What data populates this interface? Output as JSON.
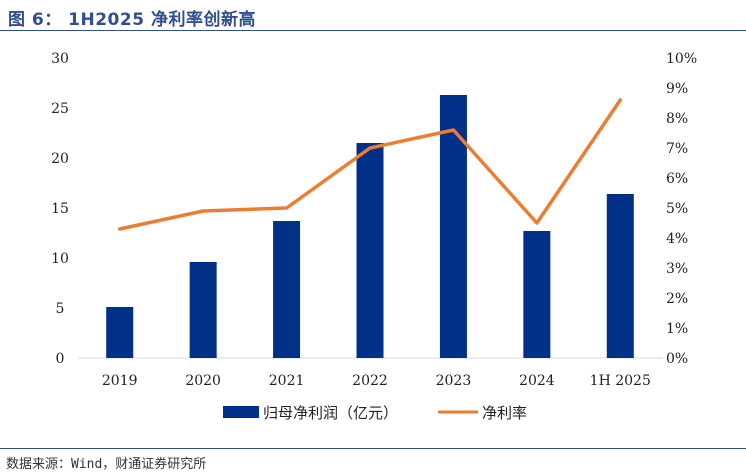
{
  "header": {
    "title": "图 6： 1H2025 净利率创新高"
  },
  "footer": {
    "source": "数据来源：Wind，财通证券研究所"
  },
  "colors": {
    "bar": "#003087",
    "line": "#ed7d31",
    "accent": "#2f4f8f"
  },
  "chart_data": {
    "type": "bar",
    "categories": [
      "2019",
      "2020",
      "2021",
      "2022",
      "2023",
      "2024",
      "1H2025"
    ],
    "category_labels": [
      "2019",
      "2020",
      "2021",
      "2022",
      "2023",
      "2024",
      "1H 2025"
    ],
    "series": [
      {
        "name": "归母净利润（亿元）",
        "type": "bar",
        "axis": "left",
        "values": [
          5.1,
          9.6,
          13.7,
          21.5,
          26.3,
          12.7,
          16.4
        ]
      },
      {
        "name": "净利率",
        "type": "line",
        "axis": "right",
        "values": [
          4.3,
          4.9,
          5.0,
          7.0,
          7.6,
          4.5,
          8.6
        ]
      }
    ],
    "y_left": {
      "ylim": [
        0,
        30
      ],
      "ticks": [
        0,
        5,
        10,
        15,
        20,
        25,
        30
      ],
      "tick_labels": [
        "0",
        "5",
        "10",
        "15",
        "20",
        "25",
        "30"
      ]
    },
    "y_right": {
      "ylim": [
        0,
        10
      ],
      "ticks": [
        0,
        1,
        2,
        3,
        4,
        5,
        6,
        7,
        8,
        9,
        10
      ],
      "tick_labels": [
        "0%",
        "1%",
        "2%",
        "3%",
        "4%",
        "5%",
        "6%",
        "7%",
        "8%",
        "9%",
        "10%"
      ]
    },
    "grid": false,
    "legend": "bottom"
  }
}
